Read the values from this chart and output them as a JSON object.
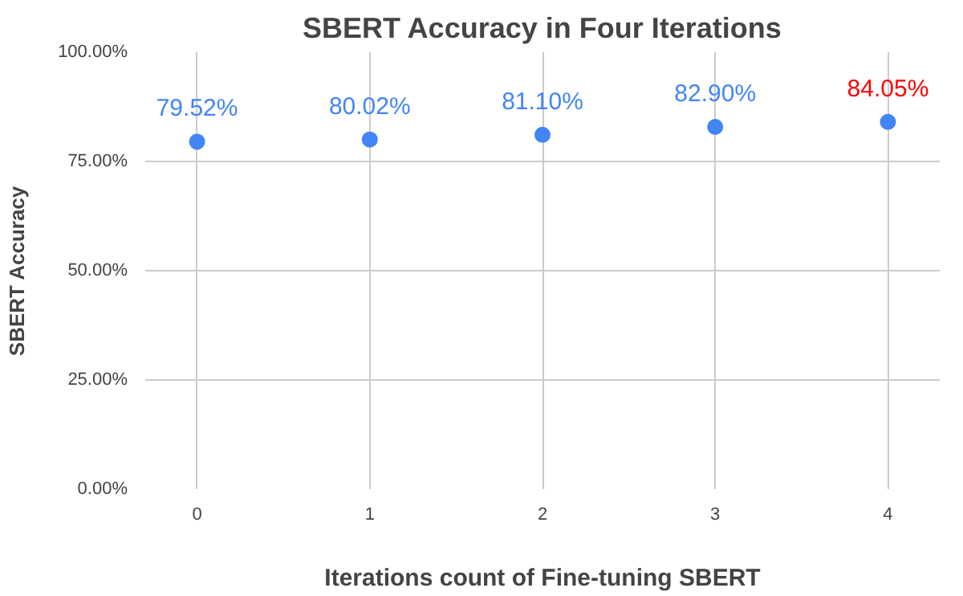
{
  "chart_data": {
    "type": "scatter",
    "title": "SBERT Accuracy in Four Iterations",
    "xlabel": "Iterations count of Fine-tuning SBERT",
    "ylabel": "SBERT Accuracy",
    "x": [
      0,
      1,
      2,
      3,
      4
    ],
    "series": [
      {
        "color": "#4285f4",
        "values": [
          79.52,
          80.02,
          81.1,
          82.9,
          84.05
        ],
        "value_labels": [
          "79.52%",
          "80.02%",
          "81.10%",
          "82.90%",
          null
        ]
      }
    ],
    "annotations": [
      {
        "text": "84.05%",
        "x": 4,
        "y": 84.05
      }
    ],
    "xlim": [
      -0.3,
      4.3
    ],
    "ylim": [
      0,
      100
    ],
    "xticks": [
      0,
      1,
      2,
      3,
      4
    ],
    "yticks": [
      {
        "value": 0,
        "label": "0.00%"
      },
      {
        "value": 25,
        "label": "25.00%"
      },
      {
        "value": 50,
        "label": "50.00%"
      },
      {
        "value": 75,
        "label": "75.00%"
      },
      {
        "value": 100,
        "label": "100.00%"
      }
    ],
    "grid": true,
    "marker": "circle"
  }
}
